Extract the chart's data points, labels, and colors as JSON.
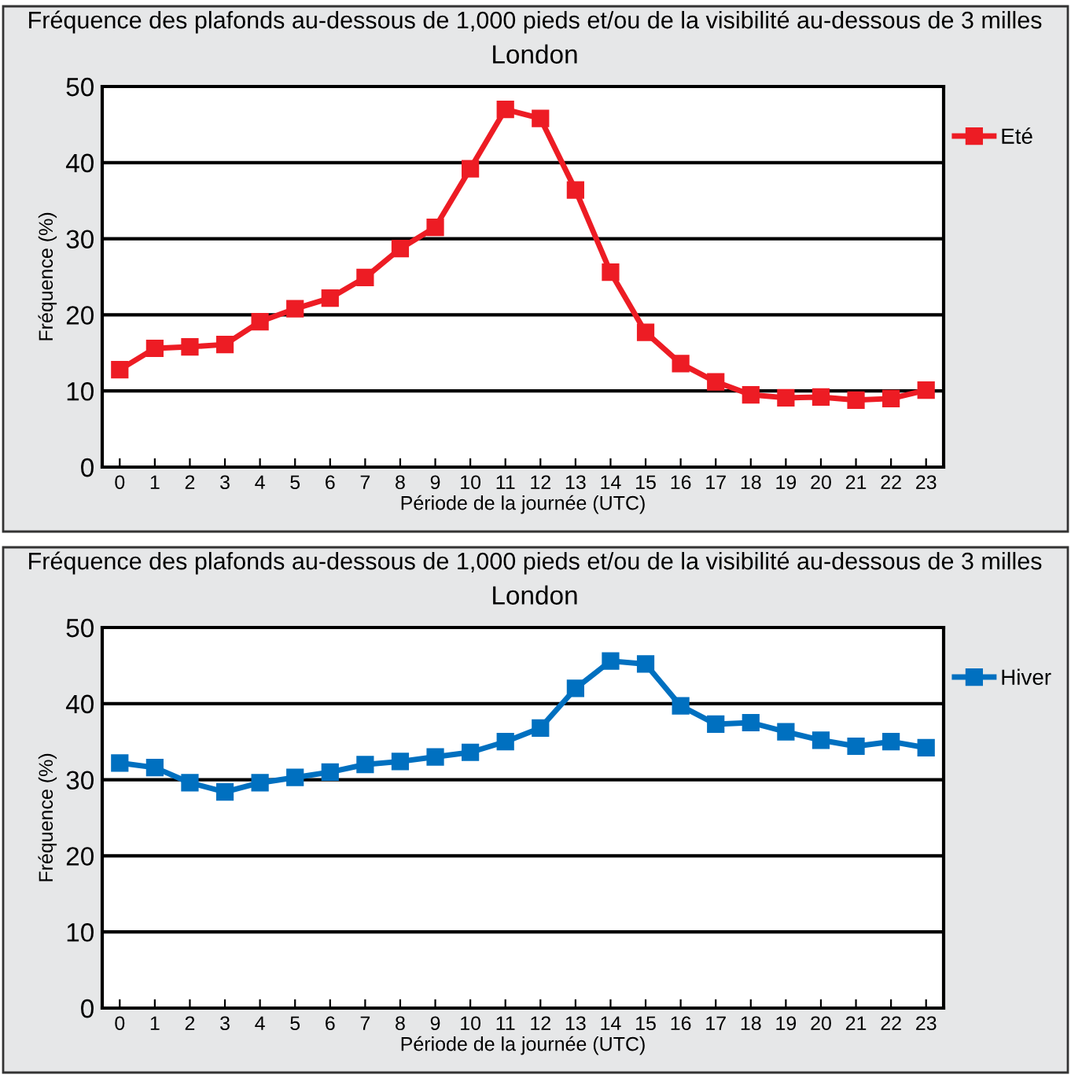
{
  "chart_data": [
    {
      "type": "line",
      "title": "Fréquence des plafonds au-dessous de 1,000 pieds et/ou de la visibilité au-dessous de 3 milles",
      "subtitle": "London",
      "xlabel": "Période de la journée (UTC)",
      "ylabel": "Fréquence (%)",
      "categories": [
        "0",
        "1",
        "2",
        "3",
        "4",
        "5",
        "6",
        "7",
        "8",
        "9",
        "10",
        "11",
        "12",
        "13",
        "14",
        "15",
        "16",
        "17",
        "18",
        "19",
        "20",
        "21",
        "22",
        "23"
      ],
      "series": [
        {
          "name": "Eté",
          "color": "#ed1c24",
          "values": [
            12.8,
            15.6,
            15.8,
            16.1,
            19.1,
            20.8,
            22.2,
            24.9,
            28.7,
            31.5,
            39.2,
            47.0,
            45.8,
            36.4,
            25.6,
            17.7,
            13.6,
            11.2,
            9.5,
            9.1,
            9.2,
            8.8,
            9.0,
            10.1
          ]
        }
      ],
      "ylim": [
        0,
        50
      ],
      "yticks": [
        0,
        10,
        20,
        30,
        40,
        50
      ],
      "grid": "y",
      "legend": "right",
      "marker": "square",
      "line_style": "solid"
    },
    {
      "type": "line",
      "title": "Fréquence des plafonds au-dessous de 1,000 pieds et/ou de la visibilité au-dessous de 3 milles",
      "subtitle": "London",
      "xlabel": "Période de la journée (UTC)",
      "ylabel": "Fréquence (%)",
      "categories": [
        "0",
        "1",
        "2",
        "3",
        "4",
        "5",
        "6",
        "7",
        "8",
        "9",
        "10",
        "11",
        "12",
        "13",
        "14",
        "15",
        "16",
        "17",
        "18",
        "19",
        "20",
        "21",
        "22",
        "23"
      ],
      "series": [
        {
          "name": "Hiver",
          "color": "#0070c0",
          "values": [
            32.2,
            31.6,
            29.6,
            28.4,
            29.6,
            30.3,
            31.0,
            32.0,
            32.4,
            33.0,
            33.6,
            35.0,
            36.8,
            42.0,
            45.6,
            45.2,
            39.7,
            37.3,
            37.5,
            36.3,
            35.2,
            34.4,
            35.0,
            34.2
          ]
        }
      ],
      "ylim": [
        0,
        50
      ],
      "yticks": [
        0,
        10,
        20,
        30,
        40,
        50
      ],
      "grid": "y",
      "legend": "right",
      "marker": "square",
      "line_style": "solid"
    }
  ]
}
